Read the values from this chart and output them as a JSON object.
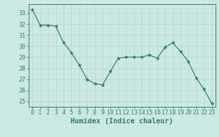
{
  "x": [
    0,
    1,
    2,
    3,
    4,
    5,
    6,
    7,
    8,
    9,
    10,
    11,
    12,
    13,
    14,
    15,
    16,
    17,
    18,
    19,
    20,
    21,
    22,
    23
  ],
  "y": [
    33.3,
    31.9,
    31.9,
    31.8,
    30.3,
    29.4,
    28.3,
    27.0,
    26.6,
    26.5,
    27.7,
    28.9,
    29.0,
    29.0,
    29.0,
    29.2,
    28.9,
    29.9,
    30.3,
    29.5,
    28.6,
    27.1,
    26.1,
    24.8
  ],
  "line_color": "#2d7d6f",
  "marker": "*",
  "marker_size": 3.5,
  "bg_color": "#cce8e4",
  "grid_color": "#aed4cf",
  "axis_color": "#2d7d6f",
  "tick_color": "#2d7d6f",
  "xlabel": "Humidex (Indice chaleur)",
  "ylim": [
    24.5,
    33.8
  ],
  "xlim": [
    -0.5,
    23.5
  ],
  "yticks": [
    25,
    26,
    27,
    28,
    29,
    30,
    31,
    32,
    33
  ],
  "xticks": [
    0,
    1,
    2,
    3,
    4,
    5,
    6,
    7,
    8,
    9,
    10,
    11,
    12,
    13,
    14,
    15,
    16,
    17,
    18,
    19,
    20,
    21,
    22,
    23
  ],
  "tick_fontsize": 6.0,
  "label_fontsize": 7.5
}
